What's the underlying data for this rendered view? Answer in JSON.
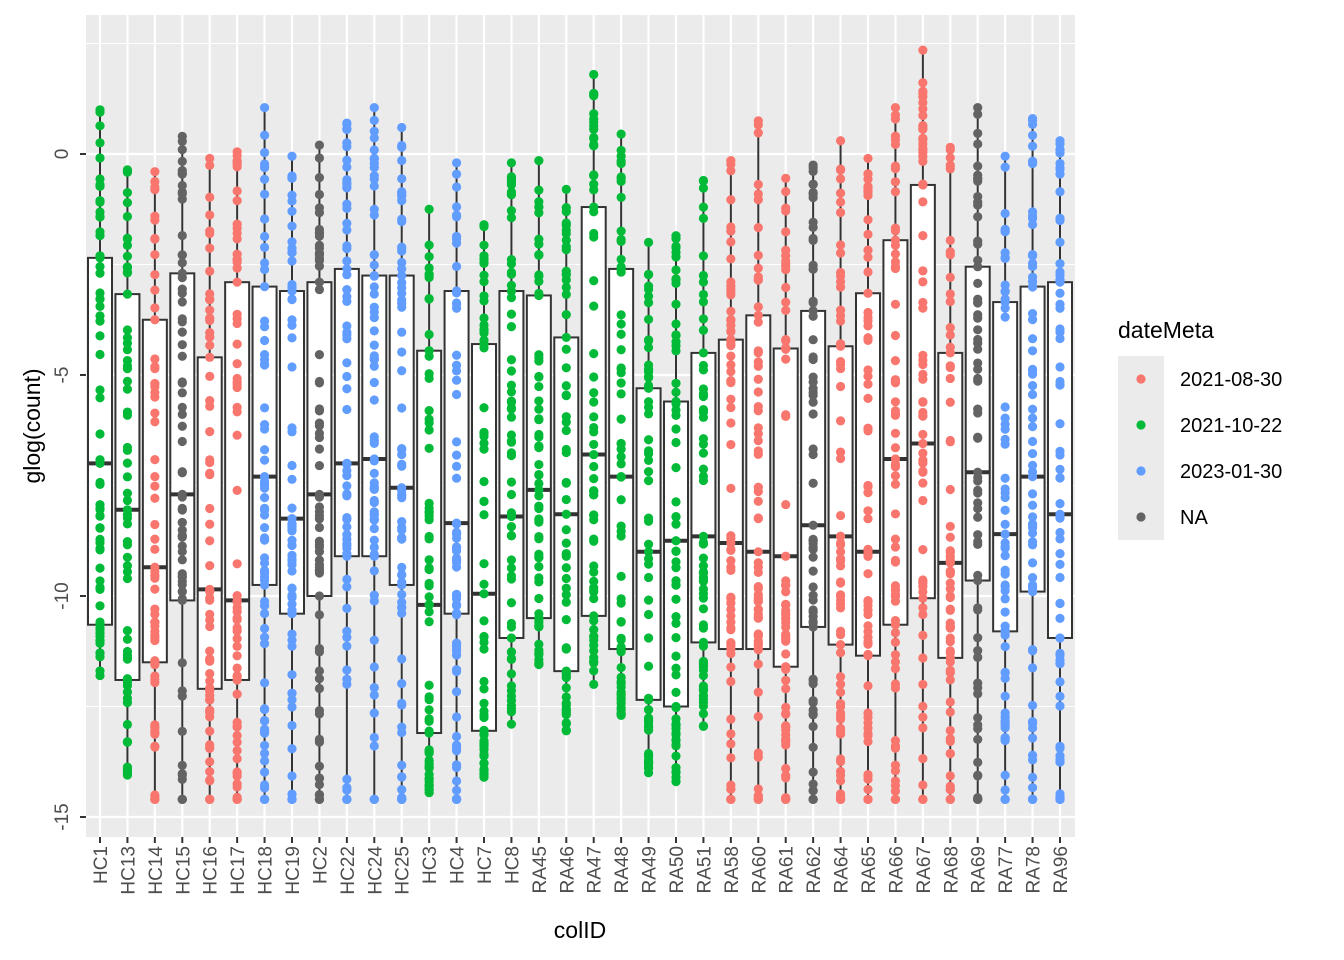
{
  "chart_data": {
    "type": "boxplot",
    "title": "",
    "xlabel": "colID",
    "ylabel": "glog(count)",
    "ylim": [
      -15.45,
      3.15
    ],
    "yticks": [
      0,
      -5,
      -10,
      -15
    ],
    "ytick_labels": [
      "0",
      "-5",
      "-10",
      "-15"
    ],
    "grid": true,
    "legend": {
      "title": "dateMeta",
      "position": "right",
      "entries": [
        {
          "label": "2021-08-30",
          "color": "#F8766D"
        },
        {
          "label": "2021-10-22",
          "color": "#00BA38"
        },
        {
          "label": "2023-01-30",
          "color": "#619CFF"
        },
        {
          "label": "NA",
          "color": "#636363"
        }
      ]
    },
    "categories": [
      "HC1",
      "HC13",
      "HC14",
      "HC15",
      "HC16",
      "HC17",
      "HC18",
      "HC19",
      "HC2",
      "HC22",
      "HC24",
      "HC25",
      "HC3",
      "HC4",
      "HC7",
      "HC8",
      "RA45",
      "RA46",
      "RA47",
      "RA48",
      "RA49",
      "RA50",
      "RA51",
      "RA58",
      "RA60",
      "RA61",
      "RA62",
      "RA64",
      "RA65",
      "RA66",
      "RA67",
      "RA68",
      "RA69",
      "RA77",
      "RA78",
      "RA96"
    ],
    "group": [
      1,
      1,
      0,
      3,
      0,
      0,
      2,
      2,
      3,
      2,
      2,
      2,
      1,
      2,
      1,
      1,
      1,
      1,
      1,
      1,
      1,
      1,
      1,
      0,
      0,
      0,
      3,
      0,
      0,
      0,
      0,
      0,
      3,
      2,
      2,
      2
    ],
    "boxes": [
      [
        -11.8,
        -10.65,
        -7.0,
        -2.35,
        1.0
      ],
      [
        -14.05,
        -11.9,
        -8.05,
        -3.17,
        -0.36
      ],
      [
        -14.6,
        -11.5,
        -9.35,
        -3.75,
        -0.4
      ],
      [
        -14.6,
        -10.1,
        -7.7,
        -2.7,
        0.4
      ],
      [
        -14.6,
        -12.1,
        -9.85,
        -4.6,
        -0.1
      ],
      [
        -14.6,
        -11.9,
        -10.1,
        -2.9,
        0.05
      ],
      [
        -14.6,
        -9.75,
        -7.3,
        -3.0,
        1.05
      ],
      [
        -14.6,
        -10.4,
        -8.25,
        -3.1,
        -0.05
      ],
      [
        -14.6,
        -10.0,
        -7.7,
        -2.9,
        0.2
      ],
      [
        -14.6,
        -9.1,
        -7.0,
        -2.6,
        0.7
      ],
      [
        -14.6,
        -9.1,
        -6.9,
        -2.75,
        1.05
      ],
      [
        -14.6,
        -9.75,
        -7.55,
        -2.75,
        0.6
      ],
      [
        -14.45,
        -13.1,
        -10.2,
        -4.45,
        -1.25
      ],
      [
        -14.6,
        -10.4,
        -8.35,
        -3.1,
        -0.2
      ],
      [
        -14.1,
        -13.05,
        -9.95,
        -4.3,
        -1.6
      ],
      [
        -12.9,
        -10.95,
        -8.2,
        -3.1,
        -0.2
      ],
      [
        -11.55,
        -10.5,
        -7.6,
        -3.2,
        -0.15
      ],
      [
        -13.05,
        -11.7,
        -8.15,
        -4.15,
        -0.8
      ],
      [
        -12.0,
        -10.45,
        -6.8,
        -1.2,
        1.8
      ],
      [
        -12.7,
        -11.2,
        -7.3,
        -2.6,
        0.45
      ],
      [
        -14.0,
        -12.35,
        -9.0,
        -5.3,
        -2.0
      ],
      [
        -14.2,
        -12.5,
        -8.75,
        -5.6,
        -1.85
      ],
      [
        -12.95,
        -11.05,
        -8.65,
        -4.5,
        -0.6
      ],
      [
        -14.6,
        -11.2,
        -8.8,
        -4.2,
        -0.15
      ],
      [
        -14.6,
        -11.2,
        -9.0,
        -3.65,
        0.75
      ],
      [
        -14.6,
        -11.6,
        -9.1,
        -4.4,
        -0.55
      ],
      [
        -14.6,
        -10.7,
        -8.4,
        -3.55,
        -0.25
      ],
      [
        -14.6,
        -11.1,
        -8.65,
        -4.35,
        0.3
      ],
      [
        -14.6,
        -11.35,
        -9.0,
        -3.15,
        -0.1
      ],
      [
        -14.6,
        -10.65,
        -6.9,
        -1.95,
        1.05
      ],
      [
        -14.6,
        -10.05,
        -6.55,
        -0.7,
        2.35
      ],
      [
        -14.6,
        -11.4,
        -9.25,
        -4.5,
        0.15
      ],
      [
        -14.6,
        -9.65,
        -7.2,
        -2.55,
        1.05
      ],
      [
        -14.6,
        -10.8,
        -8.6,
        -3.35,
        -0.05
      ],
      [
        -14.6,
        -9.9,
        -7.3,
        -3.0,
        0.8
      ],
      [
        -14.6,
        -10.95,
        -8.15,
        -2.9,
        0.3
      ]
    ],
    "box_fields": [
      "ymin",
      "q1",
      "median",
      "q3",
      "ymax"
    ],
    "points_per_group": 60
  }
}
